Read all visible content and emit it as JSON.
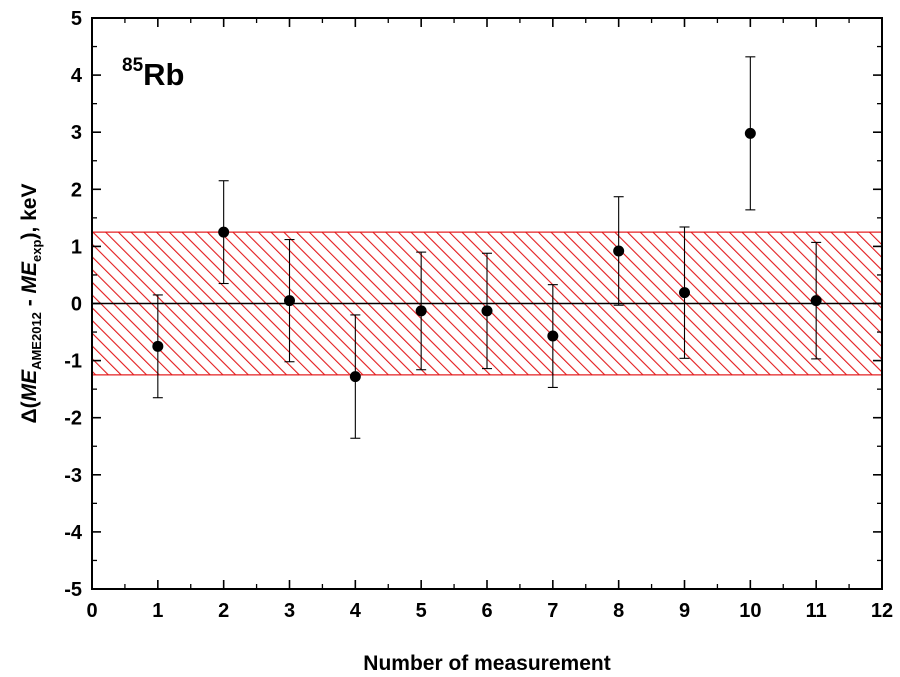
{
  "chart_data": {
    "type": "scatter",
    "annotation": {
      "superscript": "85",
      "base": "Rb"
    },
    "xlabel": "Number of measurement",
    "ylabel": {
      "prefix": "Δ(",
      "me1": "ME",
      "sub1": "AME2012",
      "minus": " - ",
      "me2": "ME",
      "sub2": "exp",
      "suffix": "), keV"
    },
    "xlim": [
      0,
      12
    ],
    "ylim": [
      -5,
      5
    ],
    "xticks": [
      0,
      1,
      2,
      3,
      4,
      5,
      6,
      7,
      8,
      9,
      10,
      11,
      12
    ],
    "yticks": [
      -5,
      -4,
      -3,
      -2,
      -1,
      0,
      1,
      2,
      3,
      4,
      5
    ],
    "grid": false,
    "reference_line": 0,
    "band": {
      "lower": -1.25,
      "upper": 1.25,
      "color": "#e31a1c",
      "pattern": "diagonal-hatch"
    },
    "series": [
      {
        "x": [
          1,
          2,
          3,
          4,
          5,
          6,
          7,
          8,
          9,
          10,
          11
        ],
        "y": [
          -0.75,
          1.25,
          0.05,
          -1.28,
          -0.13,
          -0.13,
          -0.57,
          0.92,
          0.19,
          2.98,
          0.05
        ],
        "err": [
          0.9,
          0.9,
          1.07,
          1.08,
          1.03,
          1.01,
          0.9,
          0.95,
          1.15,
          1.34,
          1.02
        ],
        "color": "#000000"
      }
    ]
  }
}
